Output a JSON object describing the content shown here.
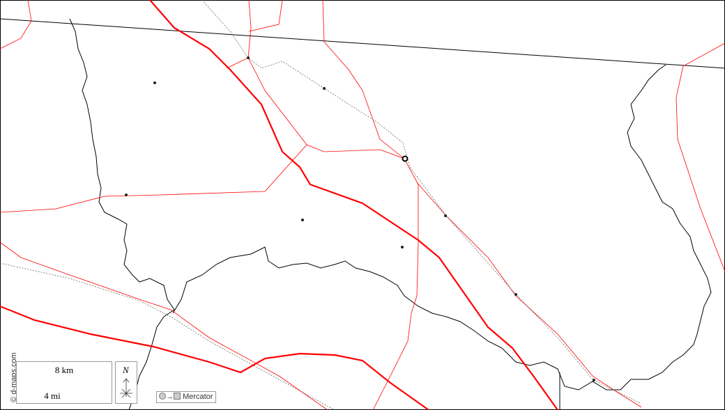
{
  "map": {
    "copyright": "© d-maps.com",
    "scale": {
      "km_label": "8 km",
      "mi_label": "4 mi"
    },
    "north_label": "N",
    "projection": {
      "arrow": "→",
      "label": "Mercator"
    },
    "colors": {
      "roads": "#ff0000",
      "border": "#000000",
      "rail": "#777777"
    }
  }
}
